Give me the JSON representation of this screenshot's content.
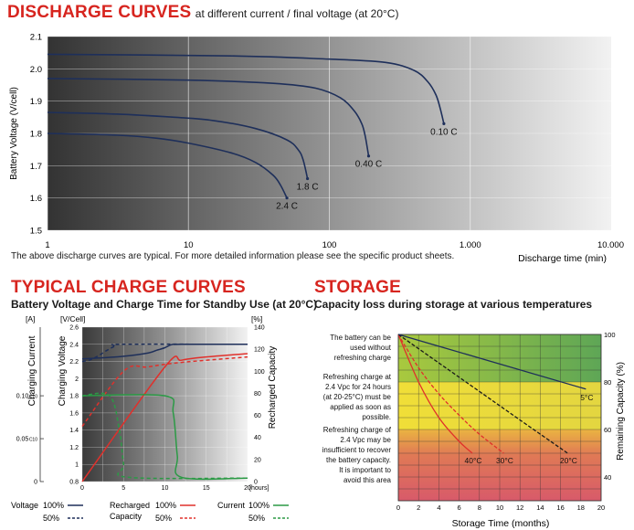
{
  "discharge": {
    "title": "DISCHARGE CURVES",
    "subtitle": "at different current / final voltage (at 20°C)",
    "note": "The above discharge curves are typical. For more detailed information please see the specific product sheets."
  },
  "charge": {
    "title": "TYPICAL CHARGE CURVES",
    "subtitle": "Battery Voltage and Charge Time for Standby Use (at 20°C)"
  },
  "storage": {
    "title": "STORAGE",
    "subtitle": "Capacity loss during storage at various temperatures"
  },
  "chart_data": [
    {
      "type": "line",
      "xlabel": "Discharge time (min)",
      "ylabel": "Battery Voltage (V/cell)",
      "x_scale": "log",
      "xlim": [
        1,
        10000
      ],
      "ylim": [
        1.5,
        2.1
      ],
      "x_tick_labels": [
        "1",
        "10",
        "100",
        "1.000",
        "10.000"
      ],
      "y_tick_labels": [
        "2.1",
        "2.0",
        "1.9",
        "1.8",
        "1.7",
        "1.6",
        "1.5"
      ],
      "grid": true,
      "series": [
        {
          "name": "2.4 C",
          "x": [
            1,
            3,
            6,
            10,
            20,
            30,
            40,
            45,
            50
          ],
          "y": [
            1.8,
            1.795,
            1.785,
            1.77,
            1.74,
            1.71,
            1.67,
            1.64,
            1.6
          ]
        },
        {
          "name": "1.8 C",
          "x": [
            1,
            3,
            8,
            15,
            30,
            50,
            60,
            65,
            70
          ],
          "y": [
            1.865,
            1.86,
            1.85,
            1.84,
            1.815,
            1.78,
            1.75,
            1.72,
            1.66
          ]
        },
        {
          "name": "0.40 C",
          "x": [
            1,
            10,
            40,
            80,
            120,
            150,
            170,
            180,
            190
          ],
          "y": [
            1.97,
            1.965,
            1.955,
            1.94,
            1.91,
            1.87,
            1.83,
            1.79,
            1.73
          ]
        },
        {
          "name": "0.10 C",
          "x": [
            1,
            20,
            100,
            250,
            400,
            500,
            570,
            610,
            650
          ],
          "y": [
            2.045,
            2.04,
            2.03,
            2.02,
            1.995,
            1.96,
            1.92,
            1.88,
            1.83
          ]
        }
      ]
    },
    {
      "type": "line",
      "xlabel": "[hours]",
      "x_tick_labels": [
        "0",
        "5",
        "10",
        "15",
        "20"
      ],
      "xlim": [
        0,
        20
      ],
      "y_axes": [
        {
          "label": "Charging Current",
          "unit": "[A]",
          "tick_labels": [
            "0.10 C10",
            "0.05 C10",
            "0"
          ]
        },
        {
          "label": "Charging Voltage",
          "unit": "[V/Cell]",
          "lim": [
            0.8,
            2.6
          ],
          "tick_labels": [
            "2.6",
            "2.4",
            "2.2",
            "2",
            "1.8",
            "1.6",
            "1.4",
            "1.2",
            "1",
            "0.8"
          ]
        },
        {
          "label": "Recharged Capacity",
          "unit": "[%]",
          "lim": [
            0,
            140
          ],
          "tick_labels": [
            "140",
            "120",
            "100",
            "80",
            "60",
            "40",
            "20",
            "0"
          ]
        }
      ],
      "grid": true,
      "legend": {
        "labels": [
          "Voltage",
          "Recharged\nCapacity",
          "Current"
        ],
        "entries": [
          "100%",
          "50%",
          "100%",
          "50%",
          "100%",
          "50%"
        ]
      },
      "series": [
        {
          "name": "Voltage 100%",
          "x": [
            0,
            2,
            5,
            8,
            9,
            10,
            10.8,
            12,
            20
          ],
          "y": [
            2.23,
            2.24,
            2.26,
            2.3,
            2.33,
            2.36,
            2.395,
            2.4,
            2.4
          ]
        },
        {
          "name": "Voltage 50%",
          "x": [
            0,
            1,
            2,
            3,
            4,
            5,
            20
          ],
          "y": [
            2.2,
            2.22,
            2.27,
            2.33,
            2.38,
            2.4,
            2.4
          ]
        },
        {
          "name": "Recharged Capacity 100%",
          "x": [
            0,
            10,
            12,
            15,
            20
          ],
          "y": [
            0,
            104,
            110,
            113,
            116
          ]
        },
        {
          "name": "Recharged Capacity 50%",
          "x": [
            0,
            5,
            8,
            12,
            20
          ],
          "y": [
            50,
            100,
            104,
            108,
            113
          ]
        },
        {
          "name": "Current 100%",
          "x": [
            0,
            10,
            11,
            11.5,
            12,
            20
          ],
          "y": [
            0.1,
            0.1,
            0.08,
            0.03,
            0.005,
            0.004
          ]
        },
        {
          "name": "Current 50%",
          "x": [
            0,
            3.3,
            4.5,
            5,
            5.5,
            20
          ],
          "y": [
            0.1,
            0.1,
            0.06,
            0.02,
            0.005,
            0.004
          ]
        }
      ]
    },
    {
      "type": "line",
      "xlabel": "Storage Time (months)",
      "ylabel": "Remaining Capacity (%)",
      "xlim": [
        0,
        20
      ],
      "ylim": [
        30,
        100
      ],
      "x_tick_labels": [
        "0",
        "2",
        "4",
        "6",
        "8",
        "10",
        "12",
        "14",
        "16",
        "18",
        "20"
      ],
      "y_tick_labels": [
        "100",
        "80",
        "60",
        "40"
      ],
      "grid": true,
      "zones": [
        {
          "text": "The battery can be used without refreshing charge",
          "from": 80,
          "to": 100
        },
        {
          "text": "Refreshing charge at 2.4 Vpc for 24 hours (at 20-25°C) must be applied as soon as possible.",
          "from": 60,
          "to": 80
        },
        {
          "text": "Refreshing charge of 2.4 Vpc may be insufficient to recover the battery capacity. It is important to avoid this area",
          "from": 30,
          "to": 60
        }
      ],
      "series": [
        {
          "name": "40°C",
          "x": [
            0,
            2,
            4,
            6,
            7.3
          ],
          "y": [
            100,
            80,
            65,
            55,
            50
          ]
        },
        {
          "name": "30°C",
          "x": [
            0,
            2,
            4,
            6,
            8,
            10.4
          ],
          "y": [
            100,
            86,
            75,
            66,
            58,
            50
          ]
        },
        {
          "name": "20°C",
          "x": [
            0,
            4,
            8,
            12,
            16.7
          ],
          "y": [
            100,
            88,
            76,
            64,
            50
          ]
        },
        {
          "name": "5°C",
          "x": [
            0,
            5,
            10,
            15,
            18.5
          ],
          "y": [
            100,
            94,
            87,
            81,
            77
          ]
        }
      ]
    }
  ]
}
